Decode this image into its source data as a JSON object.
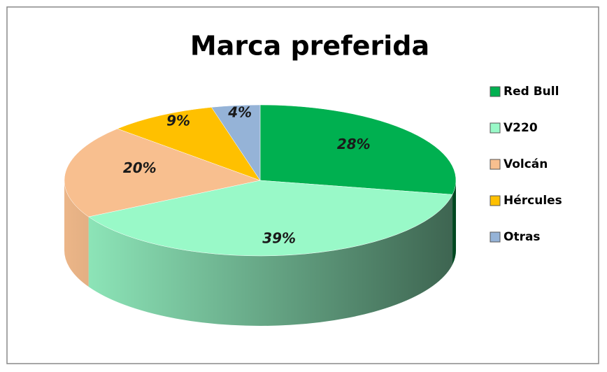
{
  "chart_data": {
    "type": "pie",
    "title": "Marca preferida",
    "categories": [
      "Red Bull",
      "V220",
      "Volcán",
      "Hércules",
      "Otras"
    ],
    "values": [
      28,
      39,
      20,
      9,
      4
    ],
    "value_labels": [
      "28%",
      "39%",
      "20%",
      "9%",
      "4%"
    ],
    "colors": [
      "#00b050",
      "#99f9c8",
      "#f8bf8f",
      "#ffc000",
      "#95b3d7"
    ],
    "legend": "right"
  }
}
